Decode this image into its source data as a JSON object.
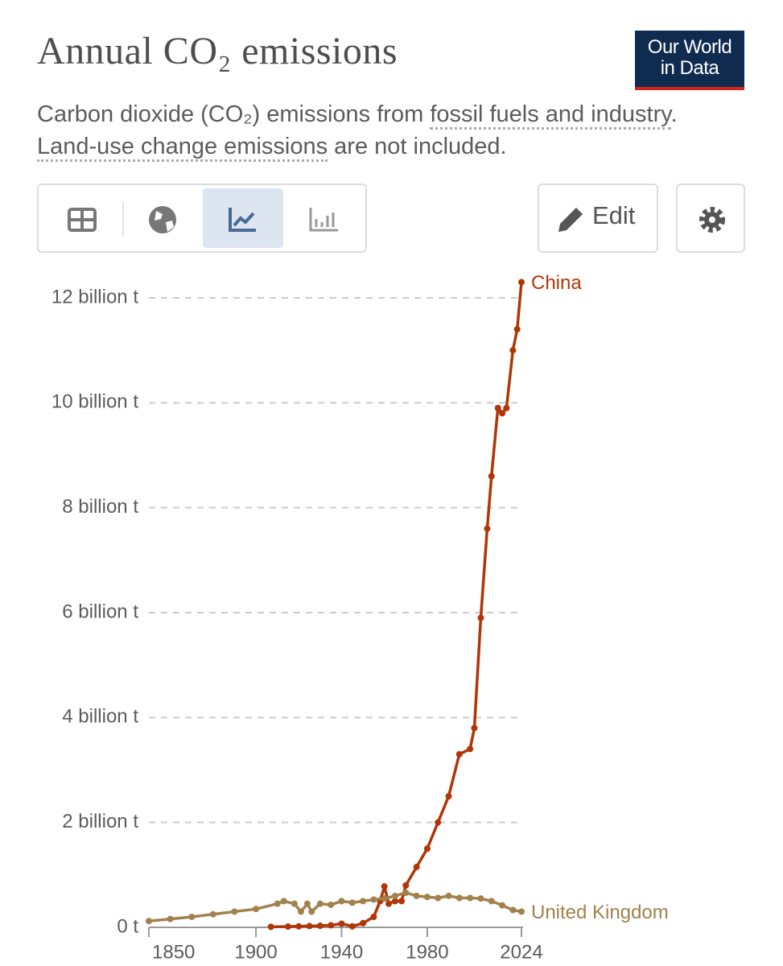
{
  "header": {
    "title": "Annual CO₂ emissions",
    "subtitle": [
      "Carbon dioxide (CO₂) emissions from ",
      "fossil fuels and industry",
      ". ",
      "Land-use change emissions",
      " are not included."
    ],
    "logo": [
      "Our World",
      "in Data"
    ],
    "edit": "Edit"
  },
  "chart_data": {
    "type": "line",
    "xlim": [
      1850,
      2024
    ],
    "xticks": [
      1850,
      1900,
      1940,
      1980,
      2024
    ],
    "ylim": [
      0,
      12000000000
    ],
    "yticks": [
      {
        "value": 0,
        "label": "0 t"
      },
      {
        "value": 2000000000,
        "label": "2 billion t"
      },
      {
        "value": 4000000000,
        "label": "4 billion t"
      },
      {
        "value": 6000000000,
        "label": "6 billion t"
      },
      {
        "value": 8000000000,
        "label": "8 billion t"
      },
      {
        "value": 10000000000,
        "label": "10 billion t"
      },
      {
        "value": 12000000000,
        "label": "12 billion t"
      }
    ],
    "grid": true,
    "series": [
      {
        "name": "China",
        "color": "#b13507",
        "x": [
          1907,
          1915,
          1920,
          1925,
          1930,
          1935,
          1940,
          1945,
          1950,
          1955,
          1958,
          1960,
          1962,
          1965,
          1968,
          1970,
          1975,
          1980,
          1985,
          1990,
          1995,
          2000,
          2002,
          2005,
          2008,
          2010,
          2013,
          2015,
          2017,
          2020,
          2022,
          2024
        ],
        "values": [
          10000000,
          15000000,
          20000000,
          25000000,
          30000000,
          40000000,
          70000000,
          20000000,
          80000000,
          200000000,
          500000000,
          780000000,
          450000000,
          500000000,
          500000000,
          800000000,
          1150000000,
          1500000000,
          2000000000,
          2500000000,
          3300000000,
          3400000000,
          3800000000,
          5900000000,
          7600000000,
          8600000000,
          9900000000,
          9800000000,
          9900000000,
          11000000000,
          11400000000,
          12300000000
        ]
      },
      {
        "name": "United Kingdom",
        "color": "#a2814d",
        "x": [
          1850,
          1860,
          1870,
          1880,
          1890,
          1900,
          1910,
          1913,
          1918,
          1921,
          1924,
          1926,
          1930,
          1935,
          1940,
          1945,
          1950,
          1955,
          1960,
          1965,
          1970,
          1975,
          1980,
          1985,
          1990,
          1995,
          2000,
          2005,
          2010,
          2015,
          2020,
          2024
        ],
        "values": [
          120000000,
          160000000,
          200000000,
          250000000,
          300000000,
          350000000,
          450000000,
          500000000,
          450000000,
          300000000,
          450000000,
          300000000,
          450000000,
          430000000,
          500000000,
          470000000,
          500000000,
          530000000,
          550000000,
          600000000,
          660000000,
          600000000,
          580000000,
          560000000,
          600000000,
          560000000,
          560000000,
          550000000,
          500000000,
          420000000,
          330000000,
          300000000
        ]
      }
    ]
  }
}
